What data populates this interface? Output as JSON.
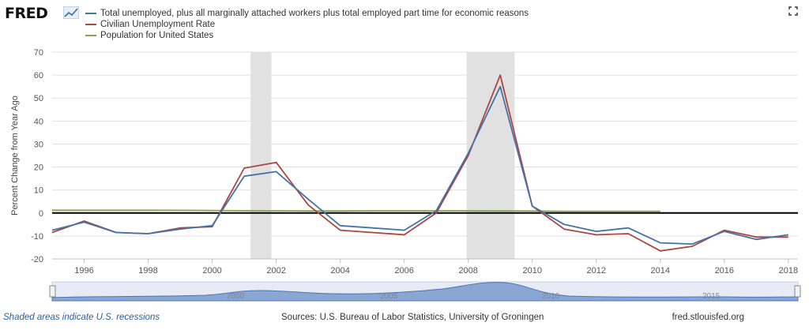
{
  "header": {
    "logo_text": "FRED"
  },
  "legend": [
    {
      "label": "Total unemployed, plus all marginally attached workers plus total employed part time for economic reasons",
      "color": "#4572a7"
    },
    {
      "label": "Civilian Unemployment Rate",
      "color": "#aa4643"
    },
    {
      "label": "Population for United States",
      "color": "#89a54e"
    }
  ],
  "footer": {
    "note": "Shaded areas indicate U.S. recessions",
    "sources": "Sources: U.S. Bureau of Labor Statistics, University of Groningen",
    "site": "fred.stlouisfed.org"
  },
  "navigator": {
    "labels": [
      "2000",
      "2005",
      "2010",
      "2015"
    ]
  },
  "chart_data": {
    "type": "line",
    "title": "",
    "xlabel": "",
    "ylabel": "Percent Change from Year Ago",
    "xlim": [
      1995,
      2018.3
    ],
    "ylim": [
      -20,
      70
    ],
    "yticks": [
      -20,
      -10,
      0,
      10,
      20,
      30,
      40,
      50,
      60,
      70
    ],
    "xticks": [
      1996,
      1998,
      2000,
      2002,
      2004,
      2006,
      2008,
      2010,
      2012,
      2014,
      2016,
      2018
    ],
    "recessions": [
      [
        2001.2,
        2001.85
      ],
      [
        2007.95,
        2009.45
      ]
    ],
    "series": [
      {
        "name": "Total unemployed, plus all marginally attached workers plus total employed part time for economic reasons",
        "color": "#4572a7",
        "x": [
          1995,
          1996,
          1997,
          1998,
          1999,
          2000,
          2001,
          2002,
          2003,
          2004,
          2005,
          2006,
          2007,
          2008,
          2009,
          2010,
          2011,
          2012,
          2013,
          2014,
          2015,
          2016,
          2017,
          2018
        ],
        "y": [
          -7.5,
          -4,
          -8.5,
          -9,
          -7,
          -5.5,
          16,
          18,
          6,
          -5.5,
          -6.5,
          -7.5,
          1,
          26,
          55,
          3,
          -5,
          -8,
          -6.5,
          -13,
          -13.5,
          -8,
          -11.5,
          -9.5
        ]
      },
      {
        "name": "Civilian Unemployment Rate",
        "color": "#aa4643",
        "x": [
          1995,
          1996,
          1997,
          1998,
          1999,
          2000,
          2001,
          2002,
          2003,
          2004,
          2005,
          2006,
          2007,
          2008,
          2009,
          2010,
          2011,
          2012,
          2013,
          2014,
          2015,
          2016,
          2017,
          2018
        ],
        "y": [
          -8.5,
          -3.5,
          -8.5,
          -9,
          -6.5,
          -6,
          19.5,
          22,
          3.5,
          -7.5,
          -8.5,
          -9.5,
          0,
          25,
          60,
          3,
          -7,
          -9.5,
          -9,
          -16.5,
          -14.5,
          -7.5,
          -10.5,
          -10.5
        ]
      },
      {
        "name": "Population for United States",
        "color": "#89a54e",
        "x": [
          1995,
          1996,
          1997,
          1998,
          1999,
          2000,
          2001,
          2002,
          2003,
          2004,
          2005,
          2006,
          2007,
          2008,
          2009,
          2010,
          2011,
          2012,
          2013,
          2014
        ],
        "y": [
          1.2,
          1.2,
          1.2,
          1.2,
          1.15,
          1.1,
          1.0,
          0.95,
          0.9,
          0.9,
          0.95,
          0.95,
          0.95,
          0.95,
          0.9,
          0.85,
          0.75,
          0.75,
          0.75,
          0.75
        ]
      }
    ]
  }
}
